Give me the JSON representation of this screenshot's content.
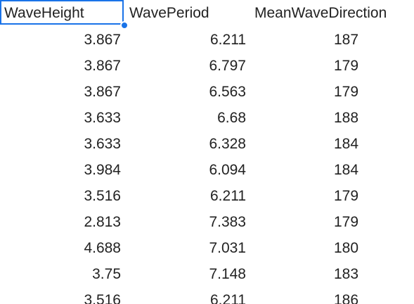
{
  "headers": [
    "WaveHeight",
    "WavePeriod",
    "MeanWaveDirection"
  ],
  "rows": [
    [
      "3.867",
      "6.211",
      "187"
    ],
    [
      "3.867",
      "6.797",
      "179"
    ],
    [
      "3.867",
      "6.563",
      "179"
    ],
    [
      "3.633",
      "6.68",
      "188"
    ],
    [
      "3.633",
      "6.328",
      "184"
    ],
    [
      "3.984",
      "6.094",
      "184"
    ],
    [
      "3.516",
      "6.211",
      "179"
    ],
    [
      "2.813",
      "7.383",
      "179"
    ],
    [
      "4.688",
      "7.031",
      "180"
    ],
    [
      "3.75",
      "7.148",
      "183"
    ],
    [
      "3.516",
      "6.211",
      "186"
    ]
  ],
  "colors": {
    "selection": "#1a73e8",
    "text": "#222222",
    "background": "#ffffff"
  }
}
